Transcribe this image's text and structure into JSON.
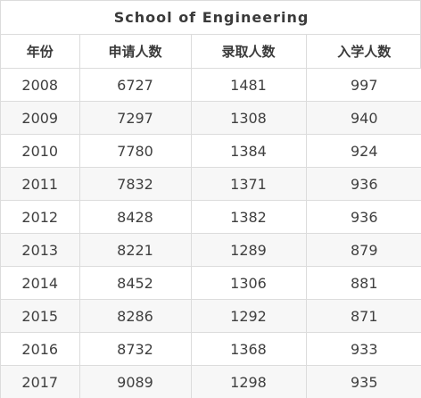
{
  "table": {
    "title": "School  of Engineering",
    "headers": [
      "年份",
      "申请人数",
      "录取人数",
      "入学人数"
    ],
    "rows": [
      [
        "2008",
        "6727",
        "1481",
        "997"
      ],
      [
        "2009",
        "7297",
        "1308",
        "940"
      ],
      [
        "2010",
        "7780",
        "1384",
        "924"
      ],
      [
        "2011",
        "7832",
        "1371",
        "936"
      ],
      [
        "2012",
        "8428",
        "1382",
        "936"
      ],
      [
        "2013",
        "8221",
        "1289",
        "879"
      ],
      [
        "2014",
        "8452",
        "1306",
        "881"
      ],
      [
        "2015",
        "8286",
        "1292",
        "871"
      ],
      [
        "2016",
        "8732",
        "1368",
        "933"
      ],
      [
        "2017",
        "9089",
        "1298",
        "935"
      ]
    ]
  },
  "colors": {
    "border": "#dcdcdc",
    "stripe": "#f7f7f7",
    "text": "#404040"
  }
}
